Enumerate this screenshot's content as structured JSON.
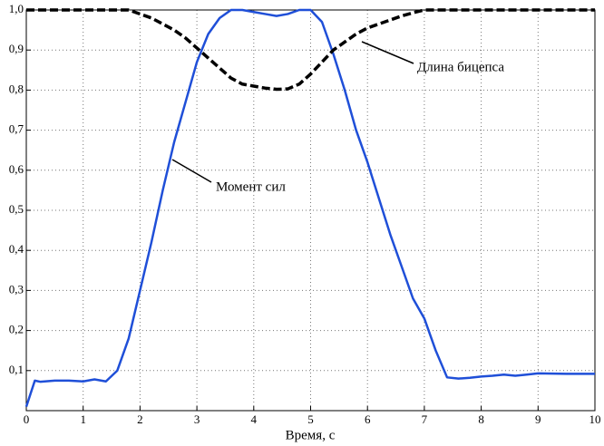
{
  "chart_data": {
    "type": "line",
    "xlabel": "Время, с",
    "xlim": [
      0,
      10
    ],
    "xticks": [
      0,
      1,
      2,
      3,
      4,
      5,
      6,
      7,
      8,
      9,
      10
    ],
    "ylim": [
      0,
      1
    ],
    "yticks": [
      {
        "value": 0.1,
        "label": "0,1"
      },
      {
        "value": 0.2,
        "label": "0,2"
      },
      {
        "value": 0.3,
        "label": "0,3"
      },
      {
        "value": 0.4,
        "label": "0,4"
      },
      {
        "value": 0.5,
        "label": "0,5"
      },
      {
        "value": 0.6,
        "label": "0,6"
      },
      {
        "value": 0.7,
        "label": "0,7"
      },
      {
        "value": 0.8,
        "label": "0,8"
      },
      {
        "value": 0.9,
        "label": "0,9"
      },
      {
        "value": 1.0,
        "label": "1,0"
      }
    ],
    "grid": true,
    "series": [
      {
        "name": "Момент сил",
        "color": "#1f4fd8",
        "dash": false,
        "x": [
          0,
          0.15,
          0.25,
          0.5,
          0.75,
          1,
          1.2,
          1.4,
          1.6,
          1.8,
          2,
          2.2,
          2.4,
          2.6,
          2.8,
          3,
          3.2,
          3.4,
          3.6,
          3.8,
          4,
          4.2,
          4.4,
          4.6,
          4.8,
          5,
          5.2,
          5.4,
          5.6,
          5.8,
          6,
          6.2,
          6.4,
          6.6,
          6.8,
          7,
          7.2,
          7.4,
          7.6,
          7.8,
          8,
          8.2,
          8.4,
          8.6,
          8.8,
          9,
          9.5,
          10
        ],
        "values": [
          0.01,
          0.075,
          0.072,
          0.075,
          0.075,
          0.073,
          0.078,
          0.073,
          0.1,
          0.18,
          0.3,
          0.42,
          0.55,
          0.67,
          0.77,
          0.87,
          0.94,
          0.98,
          1.0,
          1.0,
          0.995,
          0.99,
          0.985,
          0.99,
          1.0,
          1.0,
          0.97,
          0.89,
          0.8,
          0.7,
          0.62,
          0.53,
          0.44,
          0.36,
          0.28,
          0.23,
          0.15,
          0.083,
          0.08,
          0.082,
          0.085,
          0.087,
          0.09,
          0.087,
          0.09,
          0.093,
          0.092,
          0.092
        ]
      },
      {
        "name": "Длина бицепса",
        "color": "#000000",
        "dash": true,
        "x": [
          0,
          1,
          1.8,
          2,
          2.2,
          2.4,
          2.6,
          2.8,
          3,
          3.2,
          3.4,
          3.6,
          3.8,
          4,
          4.2,
          4.4,
          4.6,
          4.8,
          5,
          5.2,
          5.4,
          5.6,
          5.8,
          6,
          6.2,
          6.4,
          6.6,
          6.8,
          7,
          8,
          9,
          10
        ],
        "values": [
          1.0,
          1.0,
          1.0,
          0.99,
          0.98,
          0.965,
          0.95,
          0.93,
          0.905,
          0.88,
          0.855,
          0.83,
          0.815,
          0.81,
          0.805,
          0.802,
          0.803,
          0.815,
          0.84,
          0.87,
          0.9,
          0.92,
          0.94,
          0.955,
          0.965,
          0.975,
          0.985,
          0.993,
          1.0,
          1.0,
          1.0,
          1.0
        ]
      }
    ]
  }
}
